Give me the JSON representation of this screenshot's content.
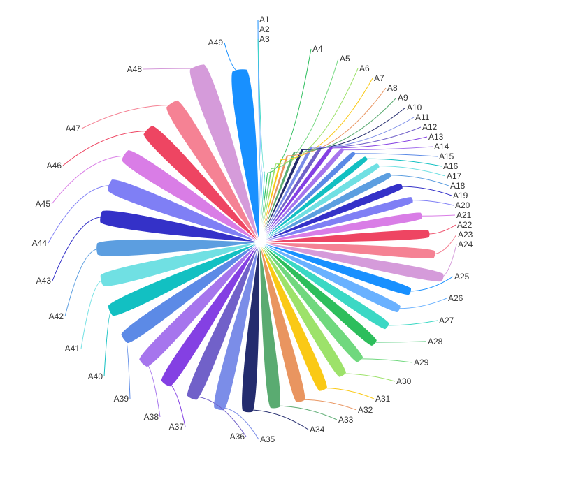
{
  "chart_data": {
    "type": "pie",
    "variant": "rose",
    "legend": "none",
    "categories": [
      "A1",
      "A2",
      "A3",
      "A4",
      "A5",
      "A6",
      "A7",
      "A8",
      "A9",
      "A10",
      "A11",
      "A12",
      "A13",
      "A14",
      "A15",
      "A16",
      "A17",
      "A18",
      "A19",
      "A20",
      "A21",
      "A22",
      "A23",
      "A24",
      "A25",
      "A26",
      "A27",
      "A28",
      "A29",
      "A30",
      "A31",
      "A32",
      "A33",
      "A34",
      "A35",
      "A36",
      "A37",
      "A38",
      "A39",
      "A40",
      "A41",
      "A42",
      "A43",
      "A44",
      "A45",
      "A46",
      "A47",
      "A48",
      "A49"
    ],
    "values": [
      40,
      46,
      52,
      58,
      64,
      70,
      76,
      82,
      88,
      94,
      100,
      106,
      112,
      118,
      124,
      130,
      136,
      142,
      148,
      154,
      160,
      166,
      172,
      178,
      184,
      190,
      196,
      202,
      208,
      214,
      220,
      226,
      232,
      238,
      244,
      250,
      256,
      262,
      268,
      274,
      280,
      286,
      292,
      298,
      304,
      310,
      316,
      322,
      328
    ],
    "radii": [
      0.375,
      0.375,
      0.375,
      0.375,
      0.4,
      0.43,
      0.46,
      0.49,
      0.52,
      0.55,
      0.58,
      0.61,
      0.64,
      0.67,
      0.7,
      0.73,
      0.76,
      0.79,
      0.82,
      0.85,
      0.88,
      0.91,
      0.94,
      1.0,
      0.85,
      0.83,
      0.82,
      0.82,
      0.83,
      0.84,
      0.86,
      0.88,
      0.89,
      0.91,
      0.92,
      0.91,
      0.91,
      0.9,
      0.89,
      0.88,
      0.87,
      0.87,
      0.86,
      0.86,
      0.86,
      0.85,
      0.88,
      1.0,
      0.93
    ],
    "colors": [
      "#1890ff",
      "#69b1ff",
      "#3bd8c4",
      "#2dbe5c",
      "#70d87e",
      "#9de26a",
      "#fac915",
      "#e99560",
      "#5aab71",
      "#242c6e",
      "#7b8de8",
      "#7161c9",
      "#8440e3",
      "#a675ed",
      "#5c8ae6",
      "#12c0c2",
      "#70e0e3",
      "#5c9ee0",
      "#3431c8",
      "#7f7ff5",
      "#d97de6",
      "#ee4562",
      "#f58294",
      "#d59bda",
      "#1890ff",
      "#69b1ff",
      "#3bd8c4",
      "#2dbe5c",
      "#70d87e",
      "#9de26a",
      "#fac915",
      "#e99560",
      "#5aab71",
      "#242c6e",
      "#7b8de8",
      "#7161c9",
      "#8440e3",
      "#a675ed",
      "#5c8ae6",
      "#12c0c2",
      "#70e0e3",
      "#5c9ee0",
      "#3431c8",
      "#7f7ff5",
      "#d97de6",
      "#ee4562",
      "#f58294",
      "#d59bda",
      "#1890ff"
    ],
    "labels": [
      {
        "text": "A1"
      },
      {
        "text": "A2"
      },
      {
        "text": "A3"
      },
      {
        "text": "A4"
      },
      {
        "text": "A5"
      },
      {
        "text": "A6"
      },
      {
        "text": "A7"
      },
      {
        "text": "A8"
      },
      {
        "text": "A9"
      },
      {
        "text": "A10"
      },
      {
        "text": "A11"
      },
      {
        "text": "A12"
      },
      {
        "text": "A13"
      },
      {
        "text": "A14"
      },
      {
        "text": "A15"
      },
      {
        "text": "A16"
      },
      {
        "text": "A17"
      },
      {
        "text": "A18"
      },
      {
        "text": "A19"
      },
      {
        "text": "A20"
      },
      {
        "text": "A21"
      },
      {
        "text": "A22"
      },
      {
        "text": "A23"
      },
      {
        "text": "A24"
      },
      {
        "text": "A25"
      },
      {
        "text": "A26"
      },
      {
        "text": "A27"
      },
      {
        "text": "A28"
      },
      {
        "text": "A29"
      },
      {
        "text": "A30"
      },
      {
        "text": "A31"
      },
      {
        "text": "A32"
      },
      {
        "text": "A33"
      },
      {
        "text": "A34"
      },
      {
        "text": "A35"
      },
      {
        "text": "A36"
      },
      {
        "text": "A37"
      },
      {
        "text": "A38"
      },
      {
        "text": "A39"
      },
      {
        "text": "A40"
      },
      {
        "text": "A41"
      },
      {
        "text": "A42"
      },
      {
        "text": "A43"
      },
      {
        "text": "A44"
      },
      {
        "text": "A45"
      },
      {
        "text": "A46"
      },
      {
        "text": "A47"
      },
      {
        "text": "A48"
      },
      {
        "text": "A49"
      }
    ]
  }
}
